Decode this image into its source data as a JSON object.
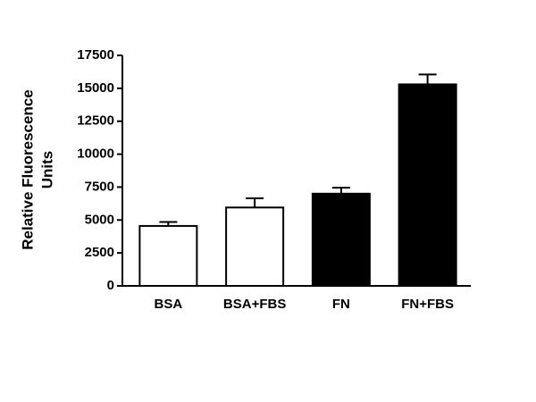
{
  "chart_data": {
    "type": "bar",
    "ylabel": [
      "Relative Fluorescence",
      "Units"
    ],
    "categories": [
      "BSA",
      "BSA+FBS",
      "FN",
      "FN+FBS"
    ],
    "values": [
      4550,
      5950,
      7000,
      15300
    ],
    "errors": [
      300,
      700,
      450,
      750
    ],
    "colors": [
      "#ffffff",
      "#ffffff",
      "#000000",
      "#000000"
    ],
    "ylim": [
      0,
      17500
    ],
    "yticks": [
      0,
      2500,
      5000,
      7500,
      10000,
      12500,
      15000,
      17500
    ],
    "grid": false
  }
}
